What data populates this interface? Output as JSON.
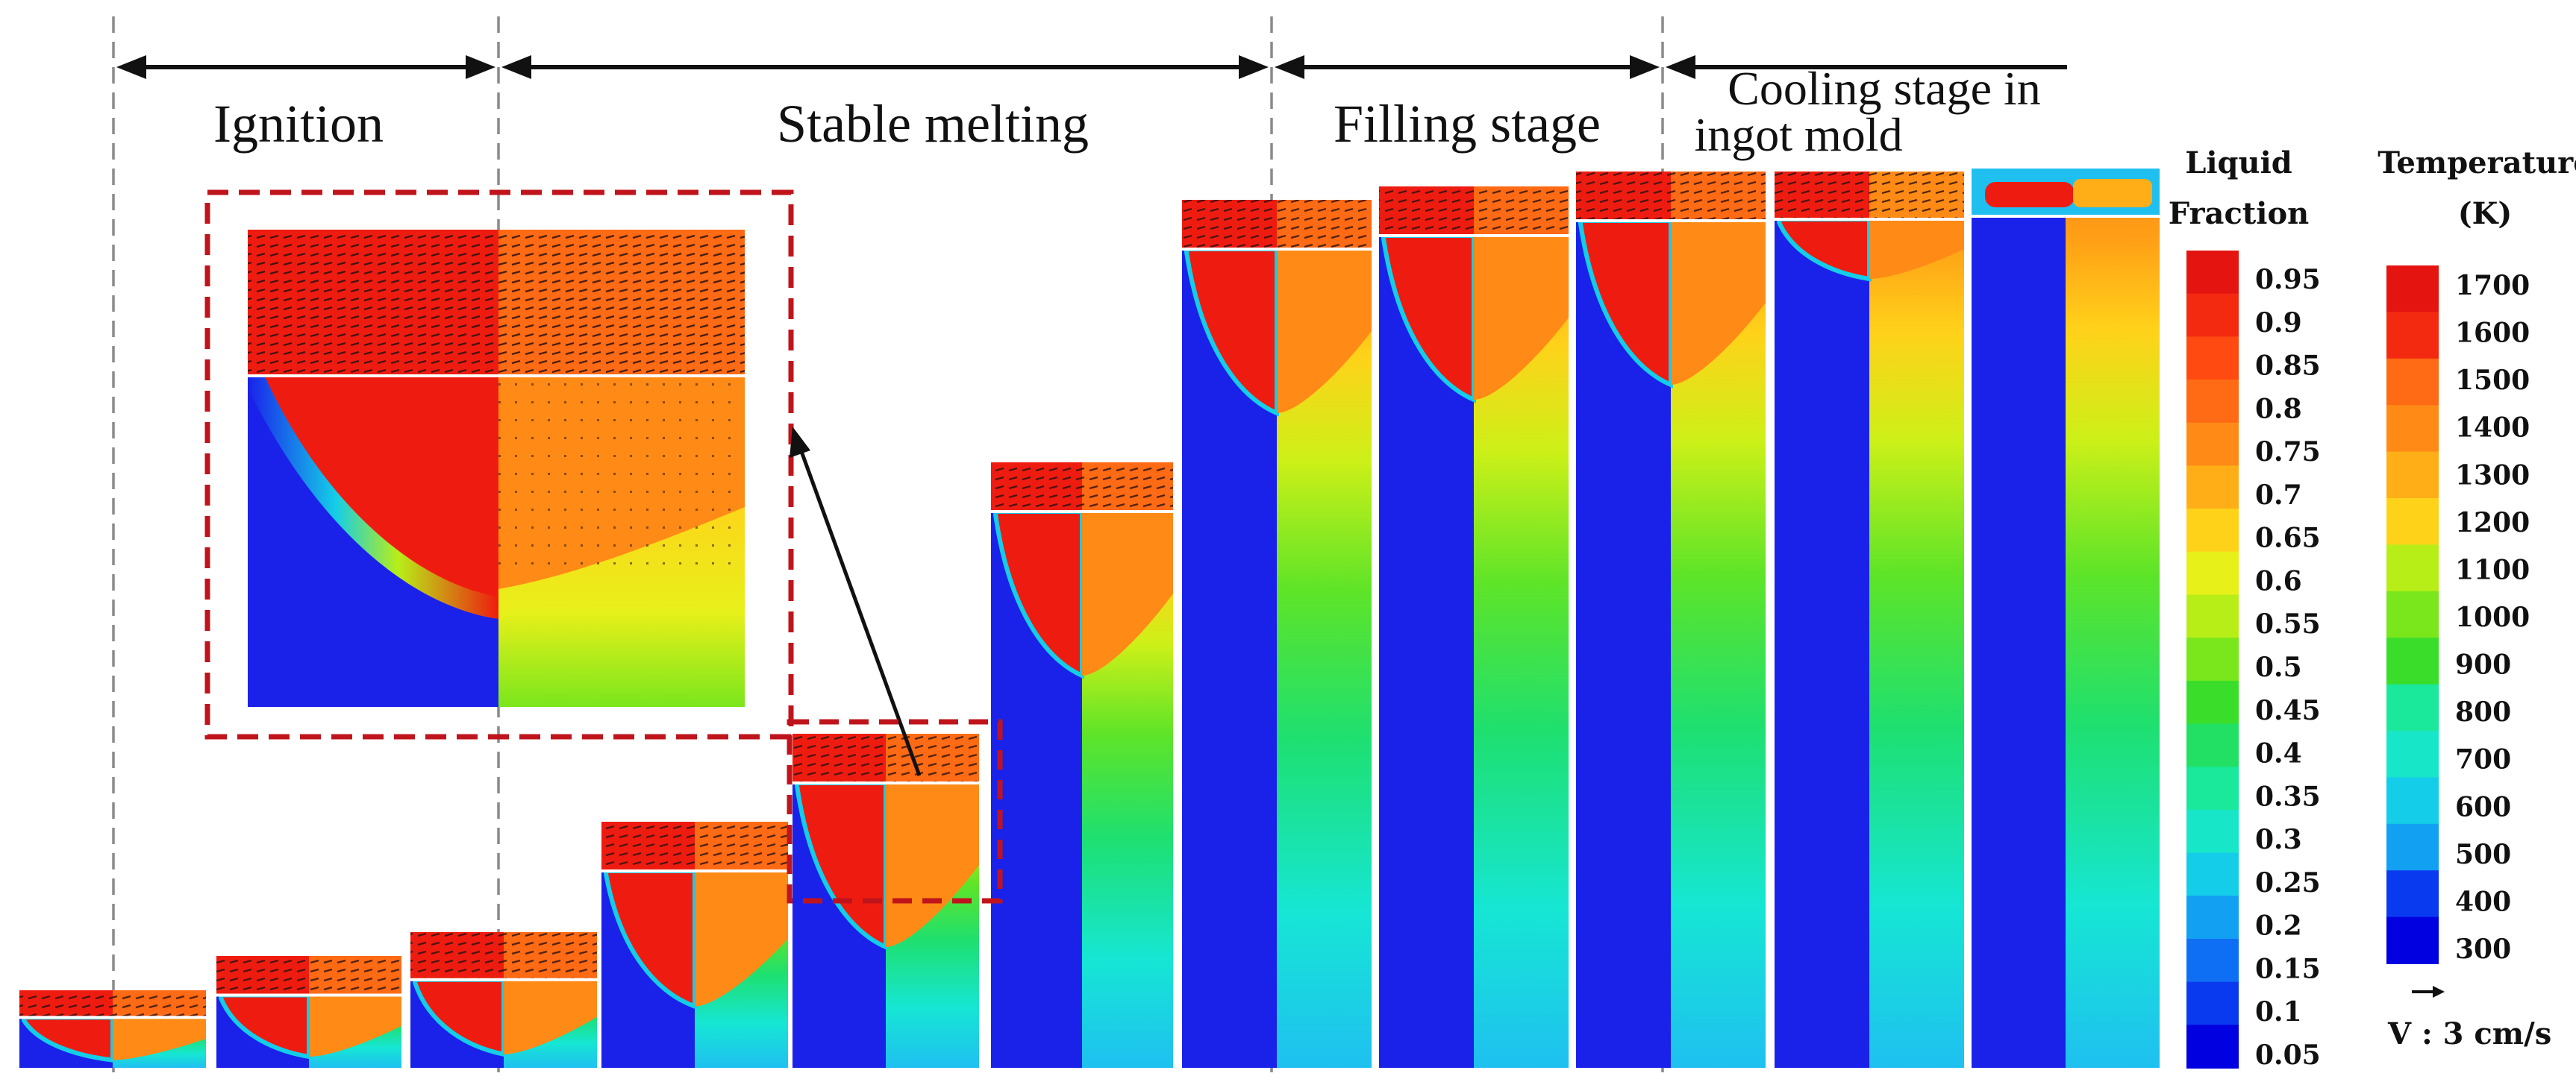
{
  "stages": [
    {
      "id": "ignition",
      "label": "Ignition"
    },
    {
      "id": "stable",
      "label": "Stable melting"
    },
    {
      "id": "filling",
      "label": "Filling stage"
    },
    {
      "id": "cooling",
      "label_line1": "Cooling stage in",
      "label_line2": "ingot mold"
    }
  ],
  "ingot_count": 11,
  "liquid_legend": {
    "title_line1": "Liquid",
    "title_line2": "Fraction",
    "ticks": [
      "0.95",
      "0.9",
      "0.85",
      "0.8",
      "0.75",
      "0.7",
      "0.65",
      "0.6",
      "0.55",
      "0.5",
      "0.45",
      "0.4",
      "0.35",
      "0.3",
      "0.25",
      "0.2",
      "0.15",
      "0.1",
      "0.05"
    ]
  },
  "temperature_legend": {
    "title_line1": "Temperature",
    "title_line2": "(K)",
    "ticks": [
      "1700",
      "1600",
      "1500",
      "1400",
      "1300",
      "1200",
      "1100",
      "1000",
      "900",
      "800",
      "700",
      "600",
      "500",
      "400",
      "300"
    ]
  },
  "velocity_reference": {
    "label": "V : 3 cm/s"
  },
  "colors": {
    "liquid": "#ee1c10",
    "solid": "#1a22ea",
    "slag_line": "#ffffff",
    "highlight_box": "#c0141c",
    "scale": [
      "#0000e0",
      "#0a3af0",
      "#0f6ff4",
      "#12a0f2",
      "#14cde8",
      "#18e6c8",
      "#1ae89a",
      "#22e064",
      "#3ade2a",
      "#7ae61c",
      "#b8ee18",
      "#e8f01a",
      "#ffd21a",
      "#ffae18",
      "#ff8a16",
      "#ff6a14",
      "#ff4a12",
      "#f42a10",
      "#e41410"
    ]
  }
}
